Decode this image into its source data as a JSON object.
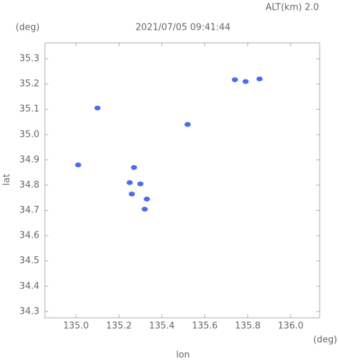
{
  "chart_data": {
    "type": "scatter",
    "title": "2021/07/05 09:41:44",
    "subtitle": "ALT(km) 2.0",
    "x_label": "lon",
    "y_label": "lat",
    "x_unit": "(deg)",
    "y_unit": "(deg)",
    "color": "#4a6cf0",
    "x": [
      135.01,
      135.1,
      135.52,
      135.74,
      135.79,
      135.855,
      135.27,
      135.25,
      135.3,
      135.26,
      135.33,
      135.32
    ],
    "y": [
      34.88,
      35.105,
      35.04,
      35.217,
      35.21,
      35.22,
      34.87,
      34.81,
      34.805,
      34.765,
      34.745,
      34.705
    ],
    "xlim": [
      134.855,
      136.135
    ],
    "ylim": [
      34.275,
      35.363
    ],
    "xticks": [
      {
        "value": 135,
        "label": "135.0"
      },
      135.2,
      135.4,
      135.6,
      135.8,
      {
        "value": 136,
        "label": "136.0"
      }
    ],
    "yticks": [
      34.3,
      34.4,
      34.5,
      34.6,
      34.7,
      34.8,
      34.9,
      {
        "value": 35,
        "label": "35.0"
      },
      35.1,
      35.2,
      35.3
    ]
  }
}
